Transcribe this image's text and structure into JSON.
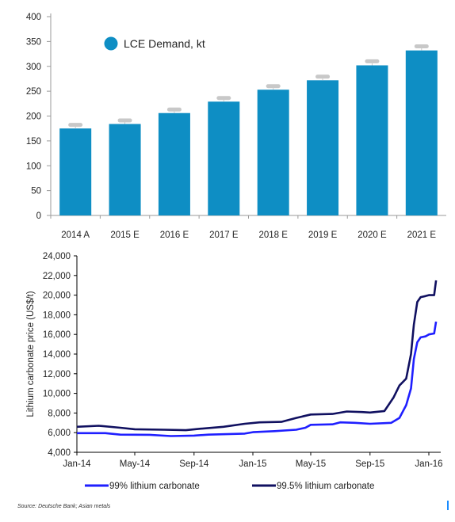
{
  "chart_data": [
    {
      "type": "bar",
      "categories": [
        "2014 A",
        "2015 E",
        "2016 E",
        "2017 E",
        "2018 E",
        "2019 E",
        "2020 E",
        "2021 E"
      ],
      "series": [
        {
          "name": "LCE Demand, kt",
          "values": [
            175,
            184,
            206,
            229,
            253,
            272,
            302,
            332
          ]
        }
      ],
      "error_caps": [
        183,
        192,
        214,
        237,
        261,
        280,
        311,
        341
      ],
      "yticks": [
        0,
        50,
        100,
        150,
        200,
        250,
        300,
        350,
        400
      ],
      "ylim": [
        0,
        400
      ],
      "title": "",
      "xlabel": "",
      "ylabel": "",
      "grid": false,
      "legend_position": "top-left",
      "colors": {
        "bar": "#0e8ec4",
        "cap": "#c8c8c8",
        "axis": "#9a9a9a"
      }
    },
    {
      "type": "line",
      "xticks": [
        "Jan-14",
        "May-14",
        "Sep-14",
        "Jan-15",
        "May-15",
        "Sep-15",
        "Jan-16"
      ],
      "yticks": [
        "4,000",
        "6,000",
        "8,000",
        "10,000",
        "12,000",
        "14,000",
        "16,000",
        "18,000",
        "20,000",
        "22,000",
        "24,000"
      ],
      "ylim": [
        4000,
        24000
      ],
      "xlim": [
        "2014-01",
        "2016-01"
      ],
      "ylabel": "Lithium carbonate price (US$/t)",
      "xlabel": "",
      "title": "",
      "grid": false,
      "legend_position": "bottom",
      "series": [
        {
          "name": "99% lithium carbonate",
          "color": "#1f1fff",
          "points": [
            [
              "2014-01-01",
              5950
            ],
            [
              "2014-03-01",
              5950
            ],
            [
              "2014-04-01",
              5800
            ],
            [
              "2014-06-01",
              5780
            ],
            [
              "2014-07-15",
              5650
            ],
            [
              "2014-09-01",
              5700
            ],
            [
              "2014-10-01",
              5800
            ],
            [
              "2014-12-15",
              5900
            ],
            [
              "2015-01-01",
              6050
            ],
            [
              "2015-02-15",
              6150
            ],
            [
              "2015-04-01",
              6300
            ],
            [
              "2015-04-20",
              6500
            ],
            [
              "2015-05-01",
              6800
            ],
            [
              "2015-06-15",
              6850
            ],
            [
              "2015-07-01",
              7050
            ],
            [
              "2015-08-01",
              7000
            ],
            [
              "2015-09-01",
              6900
            ],
            [
              "2015-10-15",
              7000
            ],
            [
              "2015-11-01",
              7500
            ],
            [
              "2015-11-15",
              8800
            ],
            [
              "2015-11-25",
              10500
            ],
            [
              "2015-12-01",
              13500
            ],
            [
              "2015-12-08",
              15200
            ],
            [
              "2015-12-15",
              15700
            ],
            [
              "2015-12-25",
              15800
            ],
            [
              "2016-01-01",
              16000
            ],
            [
              "2016-01-12",
              16100
            ],
            [
              "2016-01-16",
              17300
            ]
          ]
        },
        {
          "name": "99.5% lithium carbonate",
          "color": "#101060",
          "points": [
            [
              "2014-01-01",
              6600
            ],
            [
              "2014-02-15",
              6700
            ],
            [
              "2014-04-01",
              6500
            ],
            [
              "2014-05-01",
              6350
            ],
            [
              "2014-07-01",
              6300
            ],
            [
              "2014-08-15",
              6250
            ],
            [
              "2014-09-15",
              6400
            ],
            [
              "2014-11-01",
              6600
            ],
            [
              "2014-12-15",
              6900
            ],
            [
              "2015-01-15",
              7050
            ],
            [
              "2015-03-01",
              7100
            ],
            [
              "2015-04-01",
              7500
            ],
            [
              "2015-05-01",
              7850
            ],
            [
              "2015-06-15",
              7900
            ],
            [
              "2015-07-15",
              8150
            ],
            [
              "2015-08-15",
              8100
            ],
            [
              "2015-09-01",
              8050
            ],
            [
              "2015-10-01",
              8200
            ],
            [
              "2015-10-20",
              9600
            ],
            [
              "2015-11-01",
              10800
            ],
            [
              "2015-11-15",
              11500
            ],
            [
              "2015-11-25",
              14000
            ],
            [
              "2015-12-01",
              17000
            ],
            [
              "2015-12-08",
              19300
            ],
            [
              "2015-12-15",
              19800
            ],
            [
              "2015-12-25",
              19900
            ],
            [
              "2016-01-01",
              20000
            ],
            [
              "2016-01-12",
              20000
            ],
            [
              "2016-01-16",
              21500
            ]
          ]
        }
      ]
    }
  ],
  "source_note": "Source: Deutsche Bank; Asian metals"
}
